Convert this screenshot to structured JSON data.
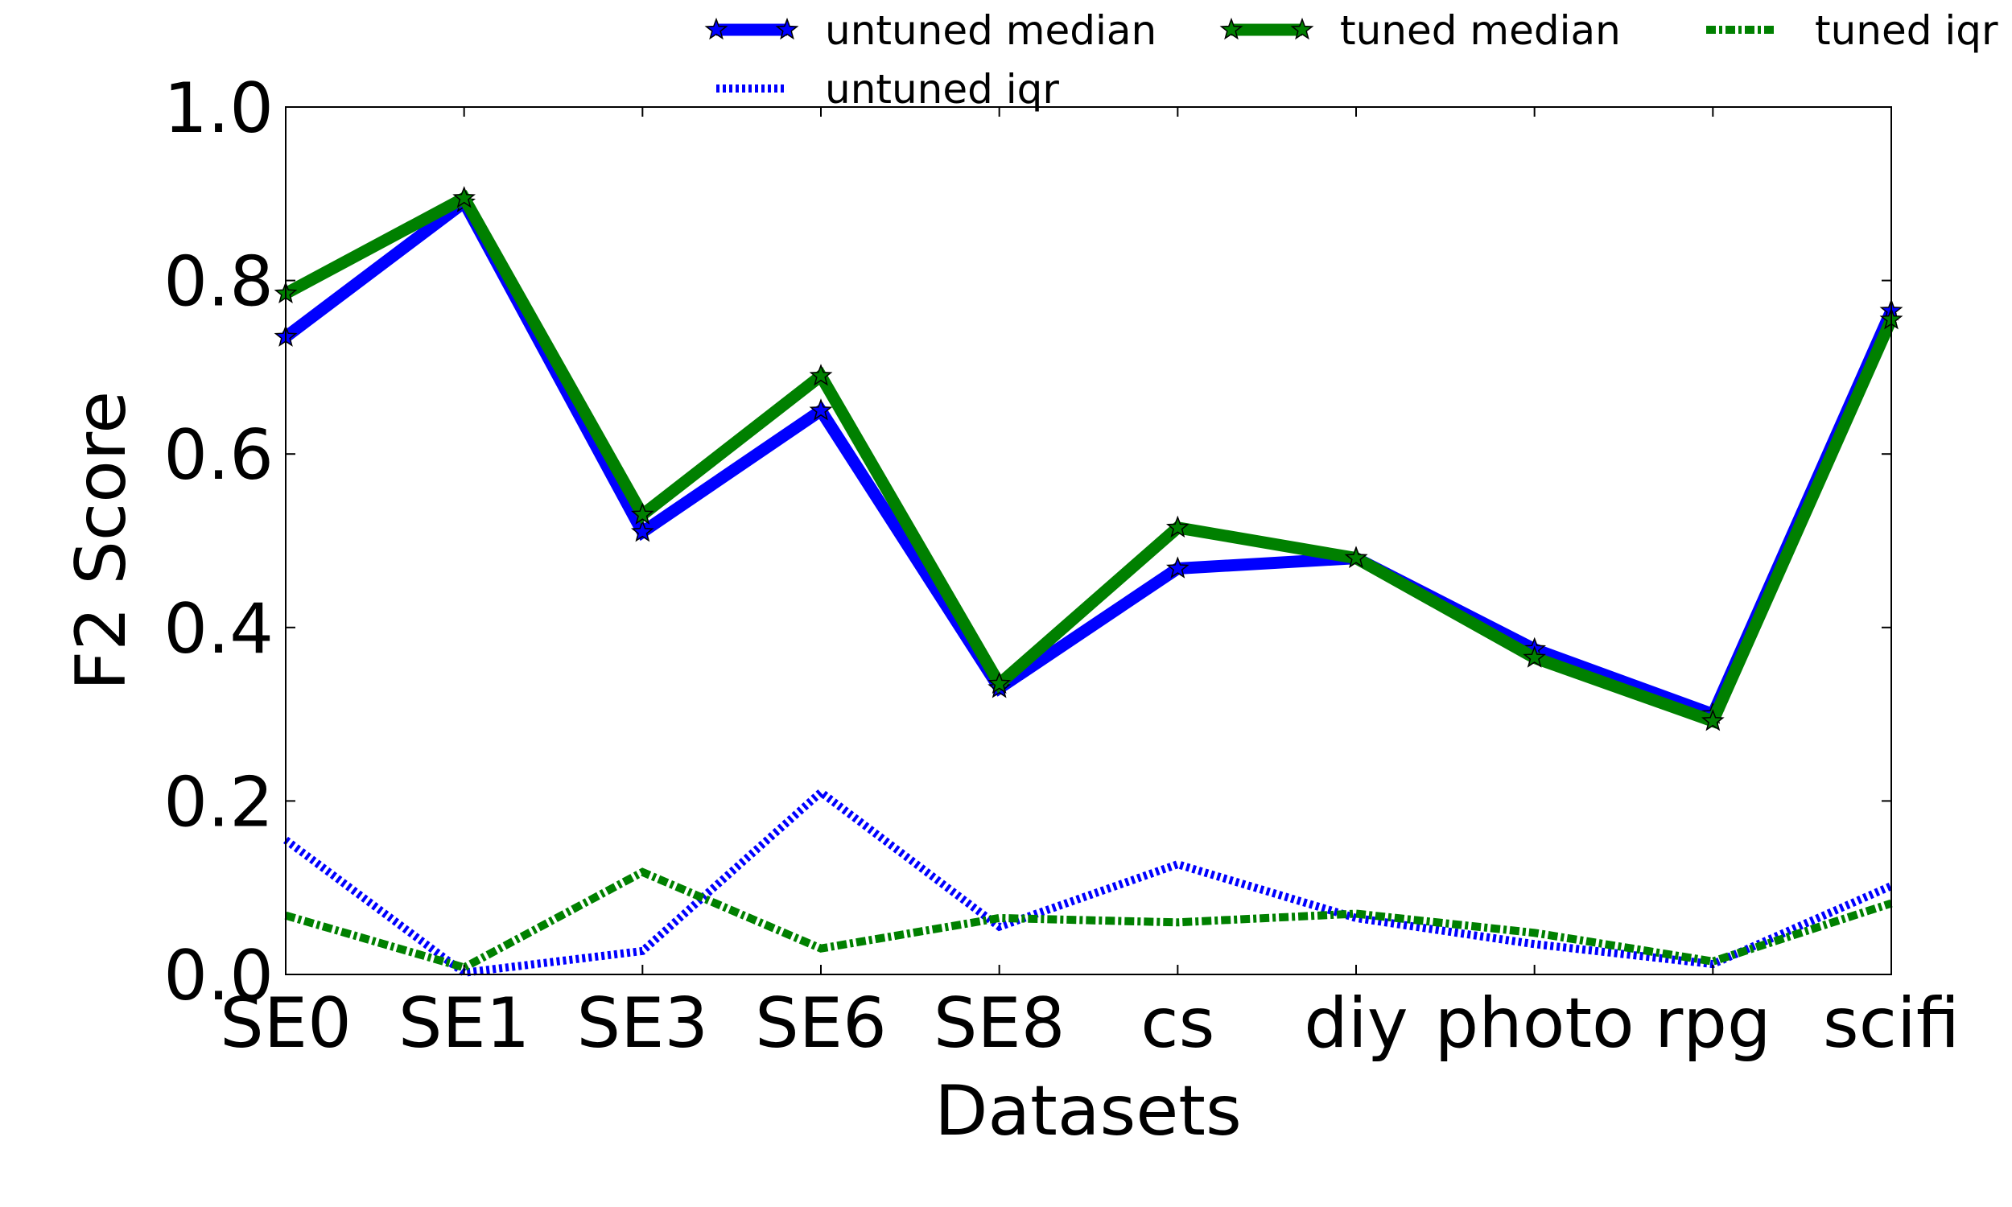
{
  "chart_data": {
    "type": "line",
    "title": "",
    "xlabel": "Datasets",
    "ylabel": "F2 Score",
    "ylim": [
      0.0,
      1.0
    ],
    "yticks": [
      "0.0",
      "0.2",
      "0.4",
      "0.6",
      "0.8",
      "1.0"
    ],
    "categories": [
      "SE0",
      "SE1",
      "SE3",
      "SE6",
      "SE8",
      "cs",
      "diy",
      "photo",
      "rpg",
      "scifi"
    ],
    "grid": false,
    "legend_position": "top",
    "series": [
      {
        "name": "untuned median",
        "values": [
          0.735,
          0.89,
          0.51,
          0.65,
          0.33,
          0.468,
          0.48,
          0.375,
          0.3,
          0.765
        ],
        "color": "#0000ff",
        "style": "solid",
        "marker": "star"
      },
      {
        "name": "tuned median",
        "values": [
          0.785,
          0.895,
          0.53,
          0.69,
          0.335,
          0.515,
          0.48,
          0.365,
          0.292,
          0.755
        ],
        "color": "#008000",
        "style": "solid",
        "marker": "star"
      },
      {
        "name": "untuned iqr",
        "values": [
          0.155,
          0.002,
          0.027,
          0.21,
          0.055,
          0.127,
          0.065,
          0.035,
          0.012,
          0.102
        ],
        "color": "#0000ff",
        "style": "dotted"
      },
      {
        "name": "tuned iqr",
        "values": [
          0.068,
          0.008,
          0.118,
          0.03,
          0.065,
          0.06,
          0.07,
          0.048,
          0.015,
          0.082
        ],
        "color": "#008000",
        "style": "dashdot"
      }
    ]
  }
}
